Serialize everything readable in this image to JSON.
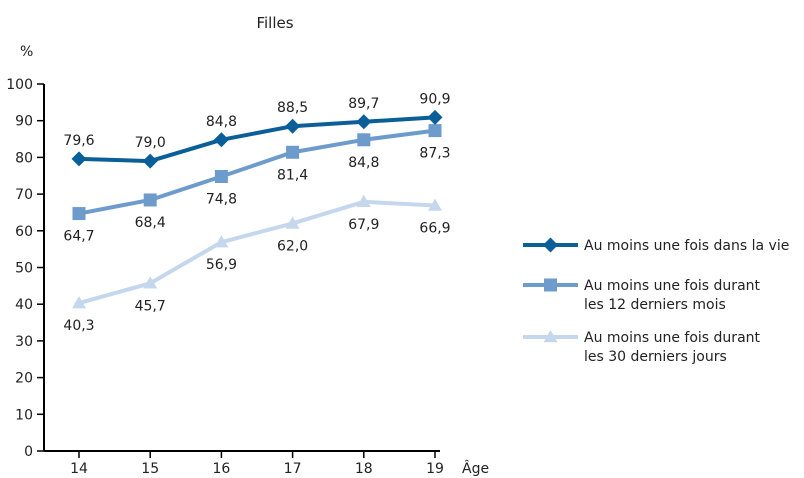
{
  "chart_data": {
    "type": "line",
    "title": "Filles",
    "ylabel": "%",
    "xlabel": "Âge",
    "x": [
      14,
      15,
      16,
      17,
      18,
      19
    ],
    "ylim": [
      0,
      100
    ],
    "yticks": [
      0,
      10,
      20,
      30,
      40,
      50,
      60,
      70,
      80,
      90,
      100
    ],
    "grid": false,
    "legend_position": "right",
    "series": [
      {
        "name": "Au moins une fois dans la vie",
        "values": [
          79.6,
          79.0,
          84.8,
          88.5,
          89.7,
          90.9
        ],
        "labels": [
          "79,6",
          "79,0",
          "84,8",
          "88,5",
          "89,7",
          "90,9"
        ],
        "label_side": "above",
        "color": "#0b5f98",
        "marker": "diamond"
      },
      {
        "name": "Au moins une fois durant les 12 derniers mois",
        "legend_lines": [
          "Au moins une fois durant",
          "les 12 derniers mois"
        ],
        "values": [
          64.7,
          68.4,
          74.8,
          81.4,
          84.8,
          87.3
        ],
        "labels": [
          "64,7",
          "68,4",
          "74,8",
          "81,4",
          "84,8",
          "87,3"
        ],
        "label_side": "below",
        "color": "#6d9bcc",
        "marker": "square"
      },
      {
        "name": "Au moins une fois durant les 30 derniers jours",
        "legend_lines": [
          "Au moins une fois durant",
          "les 30 derniers jours"
        ],
        "values": [
          40.3,
          45.7,
          56.9,
          62.0,
          67.9,
          66.9
        ],
        "labels": [
          "40,3",
          "45,7",
          "56,9",
          "62,0",
          "67,9",
          "66,9"
        ],
        "label_side": "below",
        "color": "#c5d7ec",
        "marker": "triangle"
      }
    ]
  }
}
